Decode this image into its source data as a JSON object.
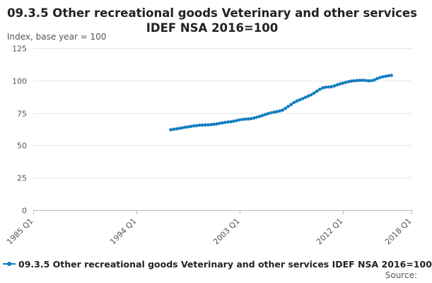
{
  "chart_data": {
    "type": "line",
    "title": "09.3.5 Other recreational goods Veterinary and other services IDEF NSA 2016=100",
    "ylabel": "Index, base year = 100",
    "xlabel": "",
    "ylim": [
      0,
      125
    ],
    "yticks": [
      0,
      25,
      50,
      75,
      100,
      125
    ],
    "xlim": [
      "1985 Q1",
      "2018 Q1"
    ],
    "xticks": [
      "1985 Q1",
      "1994 Q1",
      "2003 Q1",
      "2012 Q1",
      "2018 Q1"
    ],
    "grid": true,
    "legend_position": "bottom-left",
    "series_color": "#0f7cbf",
    "series": [
      {
        "name": "09.3.5 Other recreational goods Veterinary and other services IDEF NSA 2016=100",
        "x_start": "1997 Q1",
        "frequency": "quarterly",
        "values": [
          62.0,
          62.4,
          62.7,
          63.1,
          63.5,
          63.9,
          64.2,
          64.6,
          65.0,
          65.2,
          65.5,
          65.6,
          65.7,
          65.8,
          66.0,
          66.2,
          66.5,
          66.9,
          67.3,
          67.7,
          68.0,
          68.2,
          68.6,
          69.1,
          69.6,
          70.0,
          70.2,
          70.3,
          70.6,
          71.0,
          71.6,
          72.3,
          73.0,
          73.8,
          74.5,
          75.1,
          75.6,
          76.0,
          76.5,
          77.2,
          78.5,
          80.0,
          81.5,
          83.0,
          84.2,
          85.1,
          86.0,
          87.0,
          88.0,
          89.0,
          90.3,
          91.8,
          93.2,
          94.3,
          94.8,
          95.0,
          95.2,
          95.8,
          96.6,
          97.3,
          97.9,
          98.5,
          99.1,
          99.5,
          99.8,
          100.0,
          100.1,
          100.2,
          100.0,
          99.7,
          99.9,
          100.4,
          101.5,
          102.3,
          102.9,
          103.3,
          103.7,
          104.0
        ]
      }
    ]
  },
  "footer": {
    "source_label": "Source:"
  }
}
